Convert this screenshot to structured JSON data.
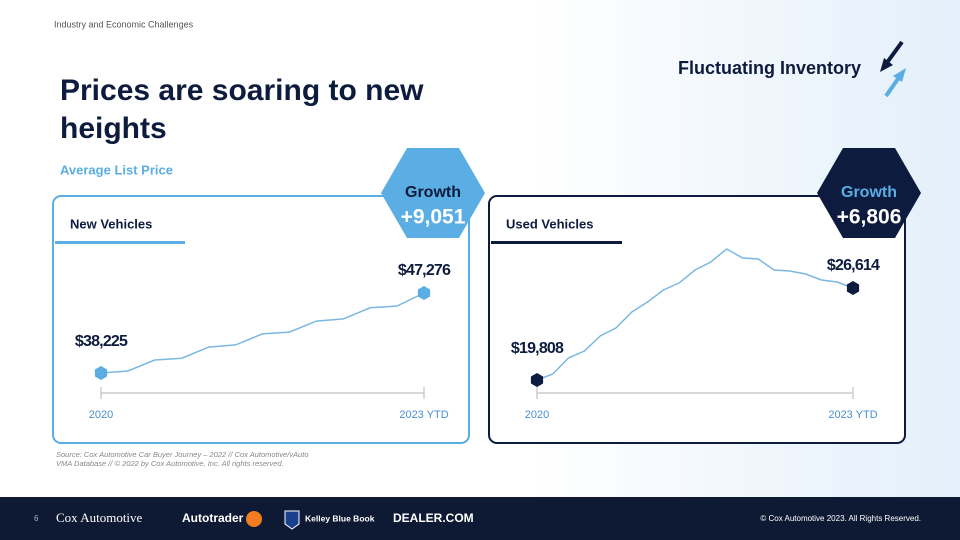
{
  "header": {
    "section": "Industry and Economic Challenges",
    "title_lines": [
      "Prices are soaring to new",
      "heights"
    ],
    "subtitle": "Average List Price",
    "badge": "Fluctuating Inventory"
  },
  "chart_data": [
    {
      "type": "line",
      "title": "New Vehicles",
      "x_labels": [
        "2020",
        "2023 YTD"
      ],
      "growth_label": "Growth",
      "growth": 9051,
      "growth_value_label": "+9,051",
      "line_color": "#7ab8e0",
      "marker_color": "#5aaee3",
      "frame_color": "#5aaee3",
      "values": [
        38225,
        38450,
        39700,
        39900,
        41150,
        41400,
        42650,
        42850,
        44100,
        44350,
        45600,
        45800,
        47276
      ],
      "value_labels": [
        "$38,225",
        null,
        null,
        null,
        null,
        null,
        null,
        null,
        null,
        null,
        null,
        null,
        "$47,276"
      ]
    },
    {
      "type": "line",
      "title": "Used Vehicles",
      "x_labels": [
        "2020",
        "2023 YTD"
      ],
      "growth_label": "Growth",
      "growth": 6806,
      "growth_value_label": "+6,806",
      "line_color": "#7ab8e0",
      "marker_color": "#0d1b3e",
      "frame_color": "#0d1b3e",
      "values": [
        19808,
        20250,
        21440,
        21950,
        23060,
        23660,
        24840,
        25580,
        26470,
        26990,
        27950,
        28540,
        29500,
        28840,
        28760,
        27950,
        27870,
        27650,
        27210,
        27060,
        26614
      ],
      "value_labels": [
        "$19,808",
        null,
        null,
        null,
        null,
        null,
        null,
        null,
        null,
        null,
        null,
        null,
        null,
        null,
        null,
        null,
        null,
        null,
        null,
        null,
        "$26,614"
      ]
    }
  ],
  "source": [
    "Source: Cox Automotive Car Buyer Journey – 2022 // Cox Automotive/vAuto",
    "VMA Database // © 2022 by Cox Automotive, Inc. All rights reserved."
  ],
  "footer": {
    "page": "6",
    "logos": [
      "Cox Automotive",
      "Autotrader",
      "Kelley Blue Book",
      "DEALER.COM"
    ],
    "copyright": "© Cox Automotive 2023. All Rights Reserved."
  }
}
